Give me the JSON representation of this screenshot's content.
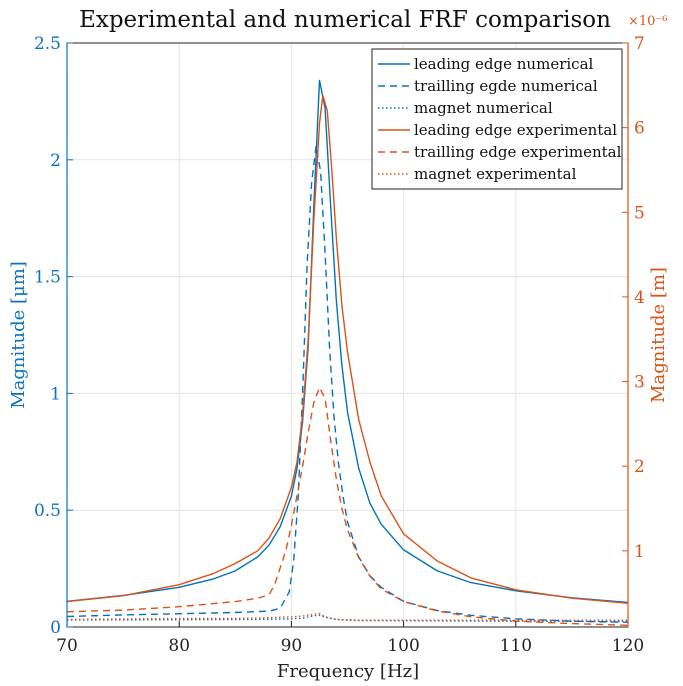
{
  "chart_data": {
    "type": "line",
    "title": "Experimental and numerical FRF comparison",
    "xlabel": "Frequency [Hz]",
    "ylabel_left": "Magnitude [μm]",
    "ylabel_right": "Magnitude [m]",
    "right_axis_exponent": "×10⁻⁶",
    "xlim": [
      70,
      120
    ],
    "ylim_left": [
      0,
      2.5
    ],
    "ylim_right": [
      0.1,
      7
    ],
    "x_ticks": [
      "70",
      "80",
      "90",
      "100",
      "110",
      "120"
    ],
    "y_ticks_left": [
      "0",
      "0.5",
      "1",
      "1.5",
      "2",
      "2.5"
    ],
    "y_ticks_right": [
      "1",
      "2",
      "3",
      "4",
      "5",
      "6",
      "7"
    ],
    "grid": true,
    "legend_position": "top-right",
    "series": [
      {
        "name": "leading edge numerical",
        "axis": "left",
        "color": "#0072bd",
        "style": "solid",
        "x": [
          70,
          75,
          80,
          83,
          85,
          87,
          88,
          89,
          90,
          90.5,
          91,
          91.5,
          92,
          92.5,
          93,
          93.5,
          94,
          94.5,
          95,
          96,
          97,
          98,
          100,
          103,
          106,
          110,
          115,
          120
        ],
        "y": [
          0.11,
          0.135,
          0.17,
          0.205,
          0.24,
          0.3,
          0.35,
          0.43,
          0.56,
          0.68,
          0.88,
          1.2,
          1.8,
          2.34,
          2.22,
          1.8,
          1.4,
          1.12,
          0.92,
          0.68,
          0.53,
          0.44,
          0.33,
          0.24,
          0.19,
          0.155,
          0.125,
          0.105
        ]
      },
      {
        "name": "trailling egde numerical",
        "axis": "left",
        "color": "#0072bd",
        "style": "dashed",
        "x": [
          70,
          75,
          80,
          85,
          88,
          89,
          89.8,
          90.2,
          90.6,
          91,
          91.4,
          91.8,
          92.2,
          92.6,
          93,
          93.4,
          93.8,
          94.2,
          94.6,
          95,
          96,
          97,
          98,
          100,
          103,
          106,
          110,
          115,
          120
        ],
        "y": [
          0.045,
          0.052,
          0.057,
          0.062,
          0.068,
          0.08,
          0.15,
          0.28,
          0.55,
          1.0,
          1.55,
          1.9,
          2.06,
          1.95,
          1.6,
          1.2,
          0.9,
          0.7,
          0.56,
          0.45,
          0.3,
          0.22,
          0.17,
          0.11,
          0.07,
          0.05,
          0.035,
          0.025,
          0.02
        ]
      },
      {
        "name": "magnet numerical",
        "axis": "left",
        "color": "#0072bd",
        "style": "dotted",
        "x": [
          70,
          80,
          85,
          88,
          90,
          91,
          92,
          92.5,
          93,
          94,
          96,
          100,
          110,
          120
        ],
        "y": [
          0.03,
          0.031,
          0.032,
          0.033,
          0.035,
          0.038,
          0.048,
          0.05,
          0.042,
          0.032,
          0.028,
          0.027,
          0.025,
          0.024
        ]
      },
      {
        "name": "leading edge experimental",
        "axis": "right",
        "color": "#d95319",
        "style": "solid",
        "x": [
          70,
          75,
          80,
          83,
          85,
          87,
          88,
          89,
          90,
          90.5,
          91,
          91.5,
          92,
          92.5,
          92.8,
          93.2,
          93.6,
          94,
          94.5,
          95,
          96,
          97,
          98,
          100,
          103,
          106,
          110,
          115,
          120
        ],
        "y": [
          0.4,
          0.47,
          0.6,
          0.73,
          0.85,
          1.0,
          1.15,
          1.38,
          1.75,
          2.05,
          2.6,
          3.5,
          4.9,
          6.05,
          6.38,
          6.2,
          5.5,
          4.7,
          3.9,
          3.35,
          2.55,
          2.05,
          1.65,
          1.2,
          0.88,
          0.68,
          0.54,
          0.44,
          0.38
        ]
      },
      {
        "name": "trailling edge experimental",
        "axis": "right",
        "color": "#d95319",
        "style": "dashed",
        "x": [
          70,
          75,
          80,
          85,
          87,
          88,
          88.5,
          89,
          89.5,
          90,
          90.5,
          91,
          91.5,
          92,
          92.5,
          93,
          93.5,
          94,
          94.5,
          95,
          96,
          97,
          98,
          100,
          103,
          106,
          110,
          115,
          120
        ],
        "y": [
          0.28,
          0.3,
          0.34,
          0.4,
          0.44,
          0.48,
          0.6,
          0.8,
          1.0,
          1.3,
          1.65,
          2.0,
          2.4,
          2.75,
          2.93,
          2.8,
          2.3,
          1.85,
          1.5,
          1.25,
          0.92,
          0.7,
          0.55,
          0.4,
          0.29,
          0.22,
          0.17,
          0.14,
          0.12
        ]
      },
      {
        "name": "magnet experimental",
        "axis": "right",
        "color": "#d95319",
        "style": "dotted",
        "x": [
          70,
          80,
          85,
          88,
          90,
          91,
          92,
          92.5,
          93,
          94,
          96,
          100,
          110,
          120
        ],
        "y": [
          0.19,
          0.2,
          0.2,
          0.21,
          0.22,
          0.23,
          0.25,
          0.26,
          0.22,
          0.19,
          0.18,
          0.18,
          0.18,
          0.18
        ]
      }
    ]
  }
}
